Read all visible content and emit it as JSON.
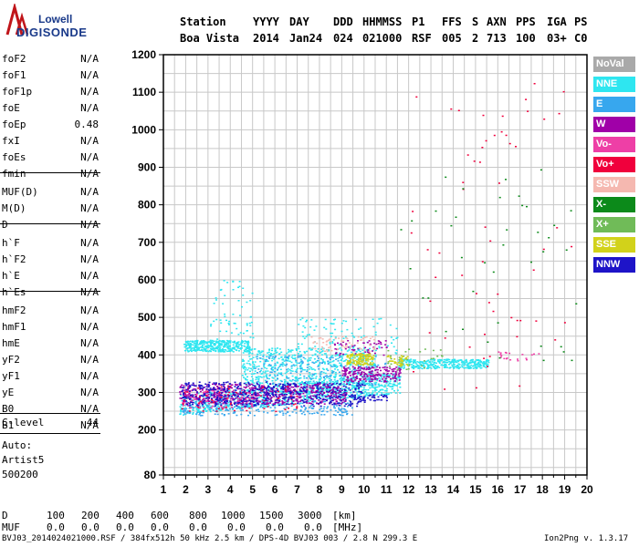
{
  "logo": {
    "line1": "Lowell",
    "line2": "DIGISONDE"
  },
  "header": {
    "labels": [
      "Station",
      "YYYY",
      "DAY",
      "DDD",
      "HHMMSS",
      "P1",
      "FFS",
      "S",
      "AXN",
      "PPS",
      "IGA",
      "PS"
    ],
    "values": [
      "Boa Vista",
      "2014",
      "Jan24",
      "024",
      "021000",
      "RSF",
      "005",
      "2",
      "713",
      "100",
      "03+",
      "C0"
    ]
  },
  "params": [
    {
      "name": "foF2",
      "value": "N/A"
    },
    {
      "name": "foF1",
      "value": "N/A"
    },
    {
      "name": "foF1p",
      "value": "N/A"
    },
    {
      "name": "foE",
      "value": "N/A"
    },
    {
      "name": "foEp",
      "value": "0.48"
    },
    {
      "name": "fxI",
      "value": "N/A"
    },
    {
      "name": "foEs",
      "value": "N/A"
    },
    {
      "name": "fmin",
      "value": "N/A"
    },
    {
      "name": "MUF(D)",
      "value": "N/A"
    },
    {
      "name": "M(D)",
      "value": "N/A"
    },
    {
      "name": "D",
      "value": "N/A"
    },
    {
      "name": "h`F",
      "value": "N/A"
    },
    {
      "name": "h`F2",
      "value": "N/A"
    },
    {
      "name": "h`E",
      "value": "N/A"
    },
    {
      "name": "h`Es",
      "value": "N/A"
    },
    {
      "name": "hmF2",
      "value": "N/A"
    },
    {
      "name": "hmF1",
      "value": "N/A"
    },
    {
      "name": "hmE",
      "value": "N/A"
    },
    {
      "name": "yF2",
      "value": "N/A"
    },
    {
      "name": "yF1",
      "value": "N/A"
    },
    {
      "name": "yE",
      "value": "N/A"
    },
    {
      "name": "B0",
      "value": "N/A"
    },
    {
      "name": "B1",
      "value": "N/A"
    },
    {
      "name": "C-level",
      "value": "44"
    }
  ],
  "autoscaling": {
    "line1": "Auto:",
    "line2": "Artist5",
    "line3": "500200"
  },
  "muf_table": {
    "d_label": "D",
    "d_values": [
      "100",
      "200",
      "400",
      "600",
      "800",
      "1000",
      "1500",
      "3000"
    ],
    "d_unit": "[km]",
    "muf_label": "MUF",
    "muf_values": [
      "0.0",
      "0.0",
      "0.0",
      "0.0",
      "0.0",
      "0.0",
      "0.0",
      "0.0"
    ],
    "muf_unit": "[MHz]"
  },
  "footer": {
    "left": "BVJ03_2014024021000.RSF / 384fx512h 50 kHz 2.5 km / DPS-4D BVJ03 003 / 2.8 N 299.3 E",
    "right": "Ion2Png v. 1.3.17"
  },
  "legend": [
    {
      "label": "NoVal",
      "color": "#a9a9a9"
    },
    {
      "label": "NNE",
      "color": "#2ee6f0"
    },
    {
      "label": "E",
      "color": "#37a7ee"
    },
    {
      "label": "W",
      "color": "#a000a8"
    },
    {
      "label": "Vo-",
      "color": "#ee3fa6"
    },
    {
      "label": "Vo+",
      "color": "#f0003c"
    },
    {
      "label": "SSW",
      "color": "#f5b8b0"
    },
    {
      "label": "X-",
      "color": "#0c8a1a"
    },
    {
      "label": "X+",
      "color": "#70bb58"
    },
    {
      "label": "SSE",
      "color": "#d2d21a"
    },
    {
      "label": "NNW",
      "color": "#1e14c8"
    }
  ],
  "chart_data": {
    "type": "scatter",
    "xlim": [
      1,
      20
    ],
    "ylim": [
      80,
      1200
    ],
    "x_ticks": [
      "1",
      "2",
      "3",
      "4",
      "5",
      "6",
      "7",
      "8",
      "9",
      "10",
      "11",
      "12",
      "13",
      "14",
      "15",
      "16",
      "17",
      "18",
      "19",
      "20"
    ],
    "y_ticks": [
      "80",
      "200",
      "300",
      "400",
      "500",
      "600",
      "700",
      "800",
      "900",
      "1000",
      "1100",
      "1200"
    ],
    "grid": true,
    "grid_x_minor_step": 0.5,
    "grid_y_step": 50,
    "legend_placement": "right",
    "series": [
      {
        "name": "NNE",
        "clusters": [
          {
            "x": [
              1.7,
              11.6
            ],
            "y": [
              235,
              300
            ],
            "n": 900
          },
          {
            "x": [
              1.9,
              4.9
            ],
            "y": [
              410,
              440
            ],
            "n": 350
          },
          {
            "x": [
              4.5,
              10.5
            ],
            "y": [
              320,
              420
            ],
            "n": 600
          },
          {
            "x": [
              11.5,
              15.6
            ],
            "y": [
              365,
              390
            ],
            "n": 350
          },
          {
            "x": [
              3.0,
              5.0
            ],
            "y": [
              440,
              600
            ],
            "n": 60
          },
          {
            "x": [
              7.0,
              11.5
            ],
            "y": [
              400,
              500
            ],
            "n": 100
          }
        ]
      },
      {
        "name": "E",
        "clusters": [
          {
            "x": [
              1.8,
              9.5
            ],
            "y": [
              240,
              280
            ],
            "n": 250
          },
          {
            "x": [
              5.0,
              11.0
            ],
            "y": [
              320,
              400
            ],
            "n": 200
          }
        ]
      },
      {
        "name": "W",
        "clusters": [
          {
            "x": [
              1.7,
              9.2
            ],
            "y": [
              270,
              325
            ],
            "n": 600
          },
          {
            "x": [
              9.0,
              11.6
            ],
            "y": [
              330,
              370
            ],
            "n": 200
          },
          {
            "x": [
              8.6,
              11.0
            ],
            "y": [
              400,
              440
            ],
            "n": 60
          }
        ]
      },
      {
        "name": "Vo-",
        "clusters": [
          {
            "x": [
              1.8,
              5.0
            ],
            "y": [
              260,
              310
            ],
            "n": 100
          },
          {
            "x": [
              16.0,
              18.0
            ],
            "y": [
              385,
              410
            ],
            "n": 20
          }
        ]
      },
      {
        "name": "Vo+",
        "clusters": [
          {
            "x": [
              1.8,
              7.0
            ],
            "y": [
              250,
              320
            ],
            "n": 80
          },
          {
            "x": [
              12.0,
              19.5
            ],
            "y": [
              300,
              1150
            ],
            "n": 60
          }
        ]
      },
      {
        "name": "SSW",
        "clusters": [
          {
            "x": [
              7.6,
              10.5
            ],
            "y": [
              410,
              450
            ],
            "n": 60
          }
        ]
      },
      {
        "name": "X-",
        "clusters": [
          {
            "x": [
              11.5,
              19.5
            ],
            "y": [
              380,
              900
            ],
            "n": 40
          }
        ]
      },
      {
        "name": "X+",
        "clusters": [
          {
            "x": [
              11.0,
              13.5
            ],
            "y": [
              360,
              420
            ],
            "n": 30
          }
        ]
      },
      {
        "name": "SSE",
        "clusters": [
          {
            "x": [
              9.2,
              10.4
            ],
            "y": [
              375,
              405
            ],
            "n": 120
          },
          {
            "x": [
              11.0,
              12.0
            ],
            "y": [
              370,
              400
            ],
            "n": 40
          }
        ]
      },
      {
        "name": "NNW",
        "clusters": [
          {
            "x": [
              1.8,
              10.0
            ],
            "y": [
              265,
              330
            ],
            "n": 500
          },
          {
            "x": [
              9.5,
              11.0
            ],
            "y": [
              280,
              295
            ],
            "n": 40
          }
        ]
      }
    ]
  }
}
